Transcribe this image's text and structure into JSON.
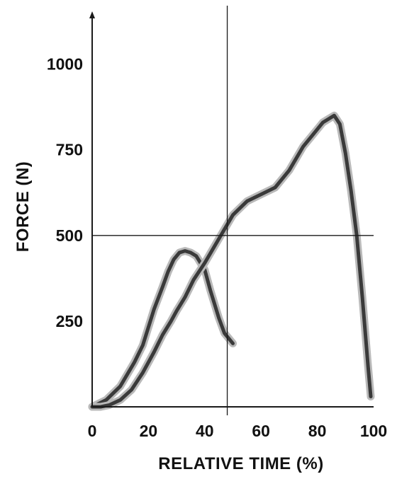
{
  "chart_data": {
    "type": "line",
    "title": "",
    "xlabel": "RELATIVE TIME (%)",
    "ylabel": "FORCE (N)",
    "xlim": [
      0,
      100
    ],
    "ylim": [
      0,
      1150
    ],
    "x_ticks": [
      0,
      20,
      40,
      60,
      80,
      100
    ],
    "y_ticks": [
      250,
      500,
      750,
      1000
    ],
    "x_tick_labels": [
      "0",
      "20",
      "40",
      "60",
      "80",
      "100"
    ],
    "y_tick_labels": [
      "250",
      "500",
      "750",
      "1000"
    ],
    "reference_lines": {
      "horizontal_y": 500,
      "vertical_x": 48
    },
    "grid": false,
    "colors": {
      "line": "#3a3a3a",
      "band": "#b9b9b9",
      "axis": "#1a1a1a"
    },
    "series": [
      {
        "x": [
          0,
          5,
          10,
          15,
          18,
          22,
          25,
          27,
          29,
          31,
          33,
          35,
          37,
          40,
          42,
          45,
          47,
          50
        ],
        "y": [
          0,
          20,
          60,
          130,
          180,
          285,
          350,
          395,
          430,
          450,
          455,
          450,
          440,
          400,
          340,
          260,
          215,
          185
        ]
      },
      {
        "x": [
          0,
          3,
          6,
          10,
          14,
          18,
          22,
          25,
          28,
          30,
          33,
          36,
          40,
          45,
          50,
          55,
          60,
          65,
          70,
          75,
          78,
          80,
          82,
          84,
          86,
          88,
          90,
          92,
          94,
          96,
          98,
          99
        ],
        "y": [
          0,
          0,
          5,
          20,
          50,
          100,
          160,
          210,
          250,
          280,
          320,
          370,
          420,
          490,
          560,
          600,
          620,
          640,
          690,
          760,
          790,
          810,
          830,
          840,
          850,
          825,
          740,
          630,
          500,
          320,
          120,
          30
        ]
      }
    ]
  }
}
